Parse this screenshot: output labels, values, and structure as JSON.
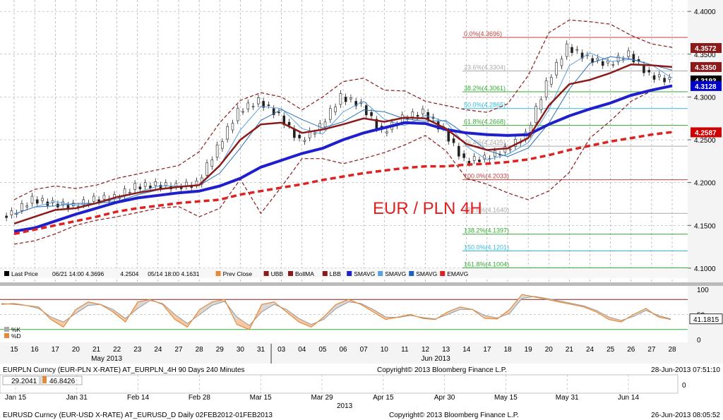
{
  "chart_data": [
    {
      "type": "line",
      "title": "EUR / PLN 4H",
      "y_axis": {
        "ylim": [
          4.09,
          4.41
        ],
        "ticks": [
          "4.1000",
          "4.1500",
          "4.2000",
          "4.2500",
          "4.3000",
          "4.3500",
          "4.4000"
        ]
      },
      "x_labels": [
        "15",
        "16",
        "17",
        "20",
        "21",
        "22",
        "23",
        "24",
        "27",
        "28",
        "29",
        "30",
        "31",
        "03",
        "04",
        "05",
        "06",
        "07",
        "10",
        "11",
        "12",
        "13",
        "14",
        "17",
        "18",
        "19",
        "20",
        "21",
        "24",
        "25",
        "26",
        "27",
        "28"
      ],
      "month_labels": [
        "May 2013",
        "Jun 2013"
      ],
      "fib_levels": [
        {
          "label": "0.0%(4.3696)",
          "value": 4.3696,
          "color": "#c04040"
        },
        {
          "label": "23.6%(4.3304)",
          "value": 4.3304,
          "color": "#aaaaaa"
        },
        {
          "label": "38.2%(4.3061)",
          "value": 4.3061,
          "color": "#33aa33"
        },
        {
          "label": "50.0%(4.2865)",
          "value": 4.2865,
          "color": "#33bbdd"
        },
        {
          "label": "61.8%(4.2668)",
          "value": 4.2668,
          "color": "#33aa33"
        },
        {
          "label": "76.4%(4.2425)",
          "value": 4.2425,
          "color": "#aaaaaa"
        },
        {
          "label": "100.0%(4.2033)",
          "value": 4.2033,
          "color": "#c04040"
        },
        {
          "label": "123.6%(4.1640)",
          "value": 4.164,
          "color": "#aaaaaa"
        },
        {
          "label": "138.2%(4.1397)",
          "value": 4.1397,
          "color": "#33aa33"
        },
        {
          "label": "150.0%(4.1201)",
          "value": 4.1201,
          "color": "#33bbdd"
        },
        {
          "label": "161.8%(4.1004)",
          "value": 4.1004,
          "color": "#33aa33"
        }
      ],
      "price_tags": [
        {
          "text": "4.3572",
          "value": 4.3572,
          "color": "#8b1a1a"
        },
        {
          "text": "4.3350",
          "value": 4.335,
          "color": "#8b1a1a"
        },
        {
          "text": "4.3193",
          "value": 4.3193,
          "color": "#000000"
        },
        {
          "text": "4.3128",
          "value": 4.3128,
          "color": "#0000cc"
        },
        {
          "text": "4.2587",
          "value": 4.2587,
          "color": "#cc0000"
        }
      ],
      "series": [
        {
          "name": "SMAVG",
          "color": "#1f1fcc",
          "values": [
            4.143,
            4.147,
            4.155,
            4.163,
            4.17,
            4.177,
            4.182,
            4.185,
            4.188,
            4.19,
            4.196,
            4.205,
            4.218,
            4.226,
            4.234,
            4.24,
            4.25,
            4.258,
            4.264,
            4.27,
            4.269,
            4.262,
            4.258,
            4.256,
            4.255,
            4.256,
            4.268,
            4.278,
            4.286,
            4.293,
            4.302,
            4.308,
            4.313
          ]
        },
        {
          "name": "EMAVG",
          "color": "#dd2222",
          "values": [
            4.14,
            4.145,
            4.15,
            4.155,
            4.16,
            4.166,
            4.17,
            4.173,
            4.176,
            4.178,
            4.18,
            4.186,
            4.19,
            4.194,
            4.198,
            4.203,
            4.207,
            4.211,
            4.214,
            4.217,
            4.219,
            4.219,
            4.221,
            4.222,
            4.224,
            4.227,
            4.232,
            4.238,
            4.243,
            4.248,
            4.252,
            4.256,
            4.259
          ]
        },
        {
          "name": "BollMA",
          "color": "#8b1a1a",
          "values": [
            4.152,
            4.16,
            4.168,
            4.17,
            4.176,
            4.183,
            4.188,
            4.192,
            4.195,
            4.197,
            4.22,
            4.25,
            4.268,
            4.27,
            4.258,
            4.262,
            4.268,
            4.275,
            4.271,
            4.276,
            4.275,
            4.263,
            4.245,
            4.238,
            4.24,
            4.252,
            4.29,
            4.315,
            4.32,
            4.328,
            4.338,
            4.337,
            4.335
          ]
        },
        {
          "name": "Last Price",
          "color": "#000000",
          "values": [
            4.163,
            4.18,
            4.175,
            4.172,
            4.18,
            4.182,
            4.195,
            4.197,
            4.195,
            4.198,
            4.24,
            4.283,
            4.295,
            4.278,
            4.248,
            4.265,
            4.3,
            4.29,
            4.258,
            4.275,
            4.282,
            4.26,
            4.225,
            4.228,
            4.238,
            4.255,
            4.315,
            4.358,
            4.345,
            4.338,
            4.35,
            4.325,
            4.319
          ]
        }
      ],
      "bollinger_upper": [
        4.18,
        4.192,
        4.196,
        4.193,
        4.197,
        4.205,
        4.21,
        4.215,
        4.22,
        4.236,
        4.27,
        4.296,
        4.305,
        4.3,
        4.285,
        4.3,
        4.318,
        4.322,
        4.308,
        4.307,
        4.295,
        4.29,
        4.285,
        4.282,
        4.292,
        4.325,
        4.375,
        4.39,
        4.388,
        4.385,
        4.372,
        4.362,
        4.358
      ],
      "bollinger_lower": [
        4.128,
        4.132,
        4.14,
        4.15,
        4.156,
        4.16,
        4.165,
        4.17,
        4.172,
        4.16,
        4.17,
        4.204,
        4.164,
        4.195,
        4.228,
        4.228,
        4.222,
        4.228,
        4.235,
        4.244,
        4.255,
        4.237,
        4.205,
        4.198,
        4.188,
        4.18,
        4.19,
        4.212,
        4.252,
        4.272,
        4.295,
        4.307,
        4.312
      ],
      "legend": [
        "Last Price",
        "06/21 14:00 4.3696",
        "4.2504",
        "05/14 18:00 4.1631",
        "Prev Close",
        "UBB",
        "BollMA",
        "LBB",
        "SMAVG",
        "SMAVG",
        "SMAVG",
        "EMAVG"
      ]
    },
    {
      "type": "line",
      "title": "",
      "y_axis": {
        "ylim": [
          0,
          100
        ],
        "ticks": [
          "100",
          "50",
          "0"
        ]
      },
      "current_value": "41.1815",
      "legend": [
        "%K",
        "%D"
      ],
      "series": [
        {
          "name": "%K",
          "color": "#e58a3b",
          "values": [
            70,
            72,
            68,
            65,
            40,
            25,
            60,
            75,
            70,
            55,
            35,
            75,
            80,
            70,
            40,
            25,
            60,
            75,
            80,
            30,
            20,
            70,
            75,
            55,
            35,
            25,
            45,
            70,
            80,
            70,
            55,
            40,
            45,
            50,
            42,
            40,
            55,
            65,
            60,
            42,
            41,
            60,
            90,
            85,
            80,
            75,
            70,
            65,
            55,
            40,
            35,
            50,
            62,
            45,
            40
          ]
        },
        {
          "name": "%D",
          "color": "#999999",
          "values": [
            72,
            70,
            68,
            62,
            45,
            35,
            52,
            68,
            70,
            60,
            42,
            62,
            78,
            72,
            50,
            32,
            50,
            68,
            76,
            45,
            28,
            55,
            70,
            60,
            42,
            30,
            40,
            62,
            75,
            72,
            60,
            45,
            44,
            48,
            44,
            41,
            50,
            60,
            60,
            48,
            43,
            52,
            82,
            86,
            82,
            77,
            72,
            67,
            58,
            45,
            38,
            46,
            58,
            48,
            41
          ]
        }
      ]
    }
  ],
  "footer": {
    "line1_left": "EURPLN Curncy (EUR-PLN X-RATE)  AT_EURPLN_4H 90 Days 240 Minutes",
    "line1_center": "Copyright© 2013 Bloomberg Finance L.P.",
    "line1_right": "28-Jun-2013 07:51:10",
    "mini_values": [
      "29.2041",
      "46.8426"
    ],
    "mini_x_labels": [
      "Jan 15",
      "Jan 31",
      "Feb 14",
      "Feb 28",
      "Mar 15",
      "Mar 29",
      "Apr 15",
      "Apr 30",
      "May 15",
      "May 31",
      "Jun 14"
    ],
    "mini_year": "2013",
    "mini_tick": "0",
    "line2_left": "EURUSD Curncy (EUR-USD X-RATE)  AT_EURUSD_D  Daily 02FEB2012-01FEB2013",
    "line2_center": "Copyright© 2013 Bloomberg Finance L.P.",
    "line2_right": "26-Jun-2013 08:05:52"
  },
  "colors": {
    "bg": "#ffffff",
    "grid": "#999999",
    "axis_bg": "#f4f4f4"
  }
}
